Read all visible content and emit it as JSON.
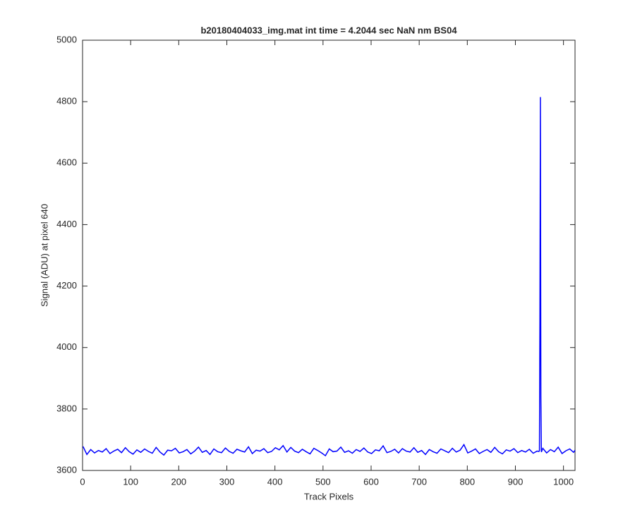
{
  "chart_data": {
    "type": "line",
    "title": "b20180404033_img.mat int time = 4.2044 sec  NaN nm BS04",
    "x_label": "Track Pixels",
    "y_label": "Signal (ADU) at pixel 640",
    "xlim": [
      0,
      1024
    ],
    "ylim": [
      3600,
      5000
    ],
    "xticks": [
      0,
      100,
      200,
      300,
      400,
      500,
      600,
      700,
      800,
      900,
      1000
    ],
    "yticks": [
      3600,
      3800,
      4000,
      4200,
      4400,
      4600,
      4800,
      5000
    ],
    "series": [
      {
        "color": "#0000ff",
        "x": [
          1,
          9,
          17,
          25,
          33,
          41,
          49,
          57,
          65,
          73,
          81,
          89,
          97,
          105,
          113,
          121,
          129,
          137,
          145,
          153,
          161,
          169,
          177,
          185,
          193,
          201,
          209,
          217,
          225,
          233,
          241,
          249,
          257,
          265,
          273,
          281,
          289,
          297,
          305,
          313,
          321,
          329,
          337,
          345,
          353,
          361,
          369,
          377,
          385,
          393,
          401,
          409,
          417,
          425,
          433,
          441,
          449,
          457,
          465,
          473,
          481,
          489,
          497,
          505,
          513,
          521,
          529,
          537,
          545,
          553,
          561,
          569,
          577,
          585,
          593,
          601,
          609,
          617,
          625,
          633,
          641,
          649,
          657,
          665,
          673,
          681,
          689,
          697,
          705,
          713,
          721,
          729,
          737,
          745,
          753,
          761,
          769,
          777,
          785,
          793,
          801,
          809,
          817,
          825,
          833,
          841,
          849,
          857,
          865,
          873,
          881,
          889,
          897,
          905,
          913,
          921,
          929,
          937,
          945,
          949,
          950,
          951,
          952,
          953,
          954,
          957,
          965,
          973,
          981,
          989,
          997,
          1005,
          1013,
          1021,
          1024
        ],
        "values": [
          3678,
          3652,
          3668,
          3657,
          3665,
          3660,
          3671,
          3655,
          3663,
          3669,
          3658,
          3674,
          3661,
          3653,
          3667,
          3659,
          3670,
          3662,
          3656,
          3675,
          3660,
          3650,
          3666,
          3664,
          3672,
          3657,
          3661,
          3668,
          3654,
          3663,
          3676,
          3659,
          3665,
          3652,
          3670,
          3661,
          3658,
          3673,
          3662,
          3656,
          3669,
          3664,
          3660,
          3677,
          3655,
          3666,
          3663,
          3671,
          3658,
          3662,
          3674,
          3667,
          3681,
          3660,
          3675,
          3663,
          3658,
          3669,
          3661,
          3654,
          3672,
          3665,
          3657,
          3648,
          3670,
          3661,
          3663,
          3676,
          3659,
          3664,
          3656,
          3668,
          3662,
          3673,
          3660,
          3655,
          3667,
          3664,
          3680,
          3658,
          3662,
          3669,
          3657,
          3671,
          3663,
          3660,
          3674,
          3659,
          3665,
          3652,
          3668,
          3661,
          3656,
          3670,
          3664,
          3658,
          3672,
          3660,
          3666,
          3684,
          3657,
          3663,
          3670,
          3655,
          3662,
          3668,
          3659,
          3675,
          3661,
          3654,
          3667,
          3663,
          3671,
          3658,
          3665,
          3660,
          3669,
          3656,
          3663,
          3662,
          3665,
          4100,
          4815,
          3840,
          3660,
          3672,
          3657,
          3668,
          3661,
          3676,
          3655,
          3664,
          3670,
          3659,
          3666
        ]
      }
    ]
  }
}
